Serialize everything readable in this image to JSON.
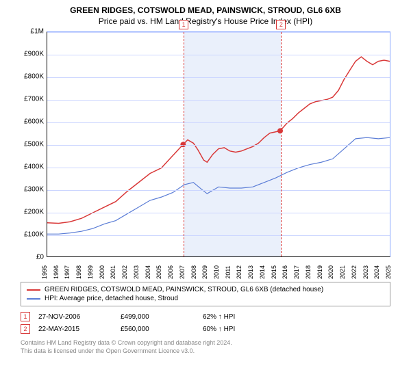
{
  "titles": {
    "main": "GREEN RIDGES, COTSWOLD MEAD, PAINSWICK, STROUD, GL6 6XB",
    "sub": "Price paid vs. HM Land Registry's House Price Index (HPI)"
  },
  "chart": {
    "type": "line",
    "ylim": [
      0,
      1000000
    ],
    "ytick_step": 100000,
    "ytick_labels": [
      "£0",
      "£100K",
      "£200K",
      "£300K",
      "£400K",
      "£500K",
      "£600K",
      "£700K",
      "£800K",
      "£900K",
      "£1M"
    ],
    "xlim": [
      1995,
      2025
    ],
    "xtick_step": 1,
    "xtick_labels": [
      "1995",
      "1996",
      "1997",
      "1998",
      "1999",
      "2000",
      "2001",
      "2002",
      "2003",
      "2004",
      "2005",
      "2006",
      "2007",
      "2008",
      "2009",
      "2010",
      "2011",
      "2012",
      "2013",
      "2014",
      "2015",
      "2016",
      "2017",
      "2018",
      "2019",
      "2020",
      "2021",
      "2022",
      "2023",
      "2024",
      "2025"
    ],
    "grid_color": "#ccd6ff",
    "background_color": "#ffffff",
    "shaded_region_color": "#eaf0fb",
    "shaded_region": [
      2006.9,
      2015.4
    ],
    "series": [
      {
        "name": "property",
        "label": "GREEN RIDGES, COTSWOLD MEAD, PAINSWICK, STROUD, GL6 6XB (detached house)",
        "color": "#d93838",
        "line_width": 1.5,
        "data": [
          [
            1995,
            150000
          ],
          [
            1996,
            148000
          ],
          [
            1997,
            155000
          ],
          [
            1998,
            170000
          ],
          [
            1999,
            195000
          ],
          [
            2000,
            220000
          ],
          [
            2001,
            245000
          ],
          [
            2002,
            290000
          ],
          [
            2003,
            330000
          ],
          [
            2004,
            370000
          ],
          [
            2005,
            395000
          ],
          [
            2006,
            450000
          ],
          [
            2006.9,
            499000
          ],
          [
            2007.3,
            520000
          ],
          [
            2007.8,
            505000
          ],
          [
            2008.2,
            475000
          ],
          [
            2008.7,
            430000
          ],
          [
            2009,
            420000
          ],
          [
            2009.5,
            455000
          ],
          [
            2010,
            480000
          ],
          [
            2010.5,
            485000
          ],
          [
            2011,
            470000
          ],
          [
            2011.5,
            465000
          ],
          [
            2012,
            470000
          ],
          [
            2012.5,
            480000
          ],
          [
            2013,
            490000
          ],
          [
            2013.5,
            505000
          ],
          [
            2014,
            530000
          ],
          [
            2014.5,
            550000
          ],
          [
            2015.4,
            560000
          ],
          [
            2016,
            595000
          ],
          [
            2016.5,
            615000
          ],
          [
            2017,
            640000
          ],
          [
            2017.5,
            660000
          ],
          [
            2018,
            680000
          ],
          [
            2018.5,
            690000
          ],
          [
            2019,
            695000
          ],
          [
            2019.5,
            700000
          ],
          [
            2020,
            710000
          ],
          [
            2020.5,
            740000
          ],
          [
            2021,
            790000
          ],
          [
            2021.5,
            830000
          ],
          [
            2022,
            870000
          ],
          [
            2022.5,
            890000
          ],
          [
            2023,
            870000
          ],
          [
            2023.5,
            855000
          ],
          [
            2024,
            870000
          ],
          [
            2024.5,
            875000
          ],
          [
            2025,
            870000
          ]
        ]
      },
      {
        "name": "hpi",
        "label": "HPI: Average price, detached house, Stroud",
        "color": "#5b7dd6",
        "line_width": 1.2,
        "data": [
          [
            1995,
            100000
          ],
          [
            1996,
            100000
          ],
          [
            1997,
            105000
          ],
          [
            1998,
            112000
          ],
          [
            1999,
            125000
          ],
          [
            2000,
            145000
          ],
          [
            2001,
            160000
          ],
          [
            2002,
            190000
          ],
          [
            2003,
            220000
          ],
          [
            2004,
            250000
          ],
          [
            2005,
            265000
          ],
          [
            2006,
            285000
          ],
          [
            2007,
            320000
          ],
          [
            2007.8,
            330000
          ],
          [
            2008.5,
            300000
          ],
          [
            2009,
            280000
          ],
          [
            2009.5,
            295000
          ],
          [
            2010,
            310000
          ],
          [
            2011,
            305000
          ],
          [
            2012,
            305000
          ],
          [
            2013,
            310000
          ],
          [
            2014,
            330000
          ],
          [
            2015,
            350000
          ],
          [
            2016,
            375000
          ],
          [
            2017,
            395000
          ],
          [
            2018,
            410000
          ],
          [
            2019,
            420000
          ],
          [
            2020,
            435000
          ],
          [
            2021,
            480000
          ],
          [
            2022,
            525000
          ],
          [
            2023,
            530000
          ],
          [
            2024,
            525000
          ],
          [
            2025,
            530000
          ]
        ]
      }
    ],
    "markers": [
      {
        "id": "1",
        "x": 2006.9,
        "box_color": "#d93838",
        "dot_y": 499000
      },
      {
        "id": "2",
        "x": 2015.4,
        "box_color": "#d93838",
        "dot_y": 560000
      }
    ],
    "dot_color": "#d93838",
    "dot_radius": 4
  },
  "legend": {
    "items": [
      {
        "color": "#d93838",
        "label": "GREEN RIDGES, COTSWOLD MEAD, PAINSWICK, STROUD, GL6 6XB (detached house)"
      },
      {
        "color": "#5b7dd6",
        "label": "HPI: Average price, detached house, Stroud"
      }
    ]
  },
  "sales": [
    {
      "id": "1",
      "date": "27-NOV-2006",
      "price": "£499,000",
      "ratio": "62% ↑ HPI"
    },
    {
      "id": "2",
      "date": "22-MAY-2015",
      "price": "£560,000",
      "ratio": "60% ↑ HPI"
    }
  ],
  "footer": {
    "line1": "Contains HM Land Registry data © Crown copyright and database right 2024.",
    "line2": "This data is licensed under the Open Government Licence v3.0."
  }
}
